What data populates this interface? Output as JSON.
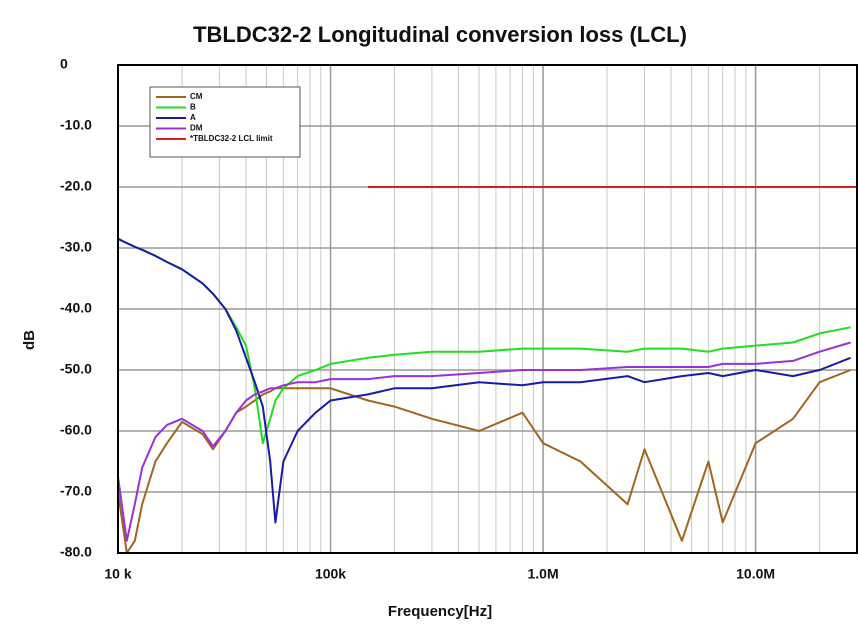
{
  "chart_data": {
    "type": "line",
    "title": "TBLDC32-2 Longitudinal conversion loss (LCL)",
    "xlabel": "Frequency[Hz]",
    "ylabel": "dB",
    "xscale": "log",
    "grid": true,
    "legend": "upper left",
    "xlim": [
      10000,
      30000000
    ],
    "ylim": [
      -80,
      0
    ],
    "xticks": [
      {
        "value": 10000,
        "label": "10 k"
      },
      {
        "value": 100000,
        "label": "100k"
      },
      {
        "value": 1000000,
        "label": "1.0M"
      },
      {
        "value": 10000000,
        "label": "10.0M"
      }
    ],
    "yticks": [
      0,
      {
        "value": -10,
        "label": "-10.0"
      },
      {
        "value": -20,
        "label": "-20.0"
      },
      {
        "value": -30,
        "label": "-30.0"
      },
      {
        "value": -40,
        "label": "-40.0"
      },
      {
        "value": -50,
        "label": "-50.0"
      },
      {
        "value": -60,
        "label": "-60.0"
      },
      {
        "value": -70,
        "label": "-70.0"
      },
      {
        "value": -80,
        "label": "-80.0"
      }
    ],
    "x": [
      10000,
      11000,
      12000,
      13000,
      15000,
      17000,
      20000,
      25000,
      28000,
      32000,
      36000,
      40000,
      44000,
      48000,
      52000,
      55000,
      60000,
      70000,
      85000,
      100000,
      150000,
      200000,
      300000,
      500000,
      800000,
      1000000,
      1500000,
      2500000,
      3000000,
      4500000,
      6000000,
      7000000,
      10000000,
      15000000,
      20000000,
      28000000
    ],
    "series": [
      {
        "name": "CM",
        "color": "#a0661e",
        "values": [
          -70,
          -80,
          -78,
          -72,
          -65,
          -62,
          -58.5,
          -60.5,
          -63,
          -60,
          -57,
          -56,
          -55,
          -54,
          -53.5,
          -53,
          -53,
          -53,
          -53,
          -53,
          -55,
          -56,
          -58,
          -60,
          -57,
          -62,
          -65,
          -72,
          -63,
          -78,
          -65,
          -75,
          -62,
          -58,
          -52,
          -50
        ]
      },
      {
        "name": "B",
        "color": "#22dd22",
        "values": [
          -28.5,
          -29.2,
          -29.8,
          -30.3,
          -31.3,
          -32.3,
          -33.5,
          -35.8,
          -37.5,
          -40,
          -43,
          -46,
          -53,
          -62,
          -58,
          -55,
          -53,
          -51,
          -50,
          -49,
          -48,
          -47.5,
          -47,
          -47,
          -46.5,
          -46.5,
          -46.5,
          -47,
          -46.5,
          -46.5,
          -47,
          -46.5,
          -46,
          -45.5,
          -44,
          -43
        ]
      },
      {
        "name": "A",
        "color": "#1a1aa8",
        "values": [
          -28.5,
          -29.2,
          -29.8,
          -30.3,
          -31.3,
          -32.3,
          -33.5,
          -35.8,
          -37.5,
          -40,
          -43.5,
          -48,
          -52,
          -56,
          -65,
          -75,
          -65,
          -60,
          -57,
          -55,
          -54,
          -53,
          -53,
          -52,
          -52.5,
          -52,
          -52,
          -51,
          -52,
          -51,
          -50.5,
          -51,
          -50,
          -51,
          -50,
          -48
        ]
      },
      {
        "name": "DM",
        "color": "#9b30d9",
        "values": [
          -67.5,
          -78,
          -72,
          -66,
          -61,
          -59,
          -58,
          -60,
          -62.5,
          -60,
          -57,
          -55,
          -54,
          -53.5,
          -53,
          -53,
          -52.5,
          -52,
          -52,
          -51.5,
          -51.5,
          -51,
          -51,
          -50.5,
          -50,
          -50,
          -50,
          -49.5,
          -49.5,
          -49.5,
          -49.5,
          -49,
          -49,
          -48.5,
          -47,
          -45.5
        ]
      },
      {
        "name": "*TBLDC32-2  LCL limit",
        "color": "#d42020",
        "x": [
          150000,
          30000000
        ],
        "values": [
          -20,
          -20
        ]
      }
    ]
  }
}
